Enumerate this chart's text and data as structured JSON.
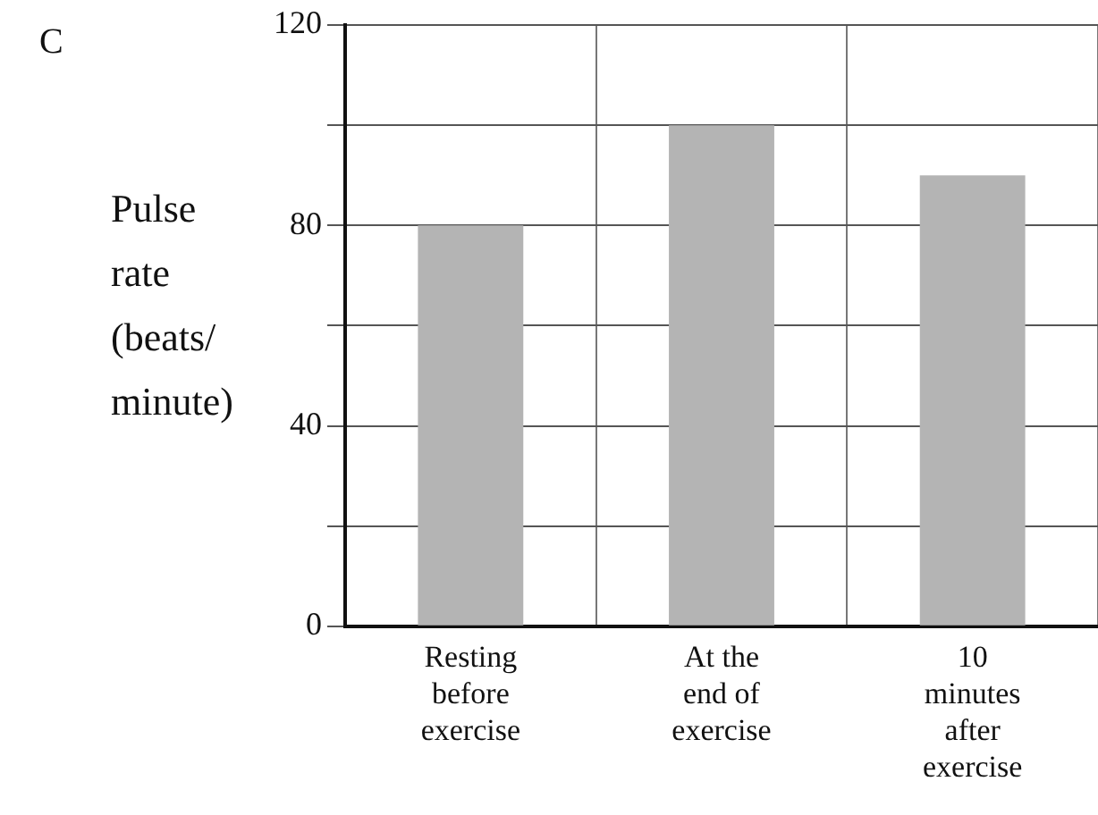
{
  "chart_data": {
    "type": "bar",
    "ylabel": "Pulse rate (beats/ minute)",
    "annotations": [
      "C"
    ],
    "categories": [
      "Resting before exercise",
      "At the end of exercise",
      "10 minutes after exercise"
    ],
    "values": [
      80,
      100,
      90
    ],
    "color": "#b4b4b4",
    "ylim": [
      0,
      120
    ],
    "yticks": [
      0,
      {
        "value": 20,
        "label": null
      },
      40,
      {
        "value": 60,
        "label": null
      },
      80,
      {
        "value": 100,
        "label": null
      },
      120
    ],
    "grid": true
  }
}
